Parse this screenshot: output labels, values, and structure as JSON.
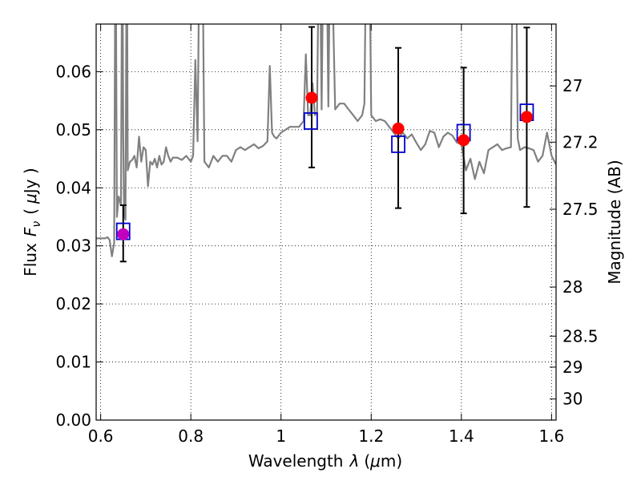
{
  "chart_data": {
    "type": "scatter",
    "xlabel_text": "Wavelength",
    "xlabel_symbol": "λ",
    "xlabel_unit_open": "(",
    "xlabel_unit_mu": "μ",
    "xlabel_unit_rest": "m)",
    "ylabel_text": "Flux",
    "ylabel_symbol": "F",
    "ylabel_subscript": "ν",
    "ylabel_unit_open": "(",
    "ylabel_unit_mu": "μ",
    "ylabel_unit_rest": "Jy )",
    "y2label": "Magnitude (AB)",
    "xlim": [
      0.59,
      1.61
    ],
    "ylim": [
      0.0,
      0.0682
    ],
    "x_ticks": [
      {
        "value": 0.6,
        "label": "0.6"
      },
      {
        "value": 0.8,
        "label": "0.8"
      },
      {
        "value": 1.0,
        "label": "1"
      },
      {
        "value": 1.2,
        "label": "1.2"
      },
      {
        "value": 1.4,
        "label": "1.4"
      },
      {
        "value": 1.6,
        "label": "1.6"
      }
    ],
    "y_ticks": [
      {
        "value": 0.0,
        "label": "0.00"
      },
      {
        "value": 0.01,
        "label": "0.01"
      },
      {
        "value": 0.02,
        "label": "0.02"
      },
      {
        "value": 0.03,
        "label": "0.03"
      },
      {
        "value": 0.04,
        "label": "0.04"
      },
      {
        "value": 0.05,
        "label": "0.05"
      },
      {
        "value": 0.06,
        "label": "0.06"
      }
    ],
    "y2_ticks": [
      {
        "value": 27,
        "label": "27"
      },
      {
        "value": 27.2,
        "label": "27.2"
      },
      {
        "value": 27.5,
        "label": "27.5"
      },
      {
        "value": 28,
        "label": "28"
      },
      {
        "value": 28.5,
        "label": "28.5"
      },
      {
        "value": 29,
        "label": "29"
      },
      {
        "value": 30,
        "label": "30"
      }
    ],
    "grid": true,
    "colors": {
      "model": "#808080",
      "observed": "#ff0000",
      "observed_first": "#bf00bf",
      "model_box": "#0000cc",
      "errorbar": "#000000"
    },
    "model_spectrum": {
      "x": [
        0.59,
        0.61,
        0.615,
        0.62,
        0.625,
        0.63,
        0.633,
        0.636,
        0.64,
        0.645,
        0.648,
        0.65,
        0.652,
        0.655,
        0.658,
        0.66,
        0.665,
        0.67,
        0.675,
        0.68,
        0.685,
        0.69,
        0.695,
        0.7,
        0.705,
        0.71,
        0.715,
        0.72,
        0.725,
        0.73,
        0.735,
        0.74,
        0.745,
        0.75,
        0.755,
        0.76,
        0.77,
        0.78,
        0.79,
        0.8,
        0.805,
        0.81,
        0.815,
        0.82,
        0.825,
        0.83,
        0.84,
        0.85,
        0.86,
        0.87,
        0.88,
        0.89,
        0.9,
        0.91,
        0.92,
        0.93,
        0.94,
        0.95,
        0.96,
        0.97,
        0.975,
        0.98,
        0.985,
        0.99,
        1.0,
        1.02,
        1.04,
        1.05,
        1.055,
        1.06,
        1.065,
        1.07,
        1.075,
        1.08,
        1.085,
        1.09,
        1.095,
        1.1,
        1.105,
        1.11,
        1.12,
        1.13,
        1.14,
        1.15,
        1.16,
        1.17,
        1.18,
        1.185,
        1.19,
        1.195,
        1.2,
        1.21,
        1.22,
        1.23,
        1.24,
        1.25,
        1.26,
        1.27,
        1.28,
        1.29,
        1.3,
        1.31,
        1.32,
        1.33,
        1.34,
        1.35,
        1.36,
        1.37,
        1.38,
        1.39,
        1.4,
        1.41,
        1.42,
        1.43,
        1.44,
        1.45,
        1.46,
        1.47,
        1.48,
        1.49,
        1.5,
        1.51,
        1.515,
        1.52,
        1.525,
        1.53,
        1.54,
        1.55,
        1.56,
        1.57,
        1.58,
        1.59,
        1.6,
        1.61
      ],
      "y": [
        0.0313,
        0.0313,
        0.0315,
        0.031,
        0.0282,
        0.0305,
        0.09,
        0.035,
        0.0385,
        0.037,
        0.09,
        0.049,
        0.0355,
        0.0345,
        0.09,
        0.043,
        0.0445,
        0.0448,
        0.0455,
        0.0435,
        0.0488,
        0.0445,
        0.047,
        0.0465,
        0.0403,
        0.0445,
        0.044,
        0.045,
        0.0435,
        0.0455,
        0.044,
        0.0445,
        0.047,
        0.0455,
        0.0445,
        0.0452,
        0.0452,
        0.0448,
        0.0455,
        0.0445,
        0.0455,
        0.062,
        0.048,
        0.09,
        0.09,
        0.0445,
        0.0435,
        0.0455,
        0.0445,
        0.0455,
        0.0455,
        0.0445,
        0.0465,
        0.047,
        0.0465,
        0.047,
        0.0475,
        0.0468,
        0.0472,
        0.048,
        0.061,
        0.0495,
        0.0488,
        0.0485,
        0.0495,
        0.0505,
        0.0505,
        0.0515,
        0.063,
        0.0525,
        0.0525,
        0.058,
        0.0525,
        0.053,
        0.09,
        0.0535,
        0.09,
        0.09,
        0.054,
        0.09,
        0.0535,
        0.0545,
        0.0545,
        0.0535,
        0.0525,
        0.0515,
        0.0525,
        0.0545,
        0.09,
        0.09,
        0.0525,
        0.0515,
        0.0518,
        0.0515,
        0.0505,
        0.0495,
        0.0485,
        0.0495,
        0.0485,
        0.0492,
        0.0478,
        0.0465,
        0.0475,
        0.0498,
        0.0495,
        0.047,
        0.0488,
        0.0495,
        0.049,
        0.0478,
        0.0475,
        0.043,
        0.045,
        0.0415,
        0.0445,
        0.0425,
        0.0465,
        0.047,
        0.0475,
        0.0465,
        0.0468,
        0.047,
        0.09,
        0.09,
        0.0485,
        0.0465,
        0.047,
        0.0468,
        0.0465,
        0.0445,
        0.0455,
        0.0495,
        0.0455,
        0.044
      ]
    },
    "model_photometry": {
      "x": [
        0.65,
        1.066,
        1.26,
        1.405,
        1.545
      ],
      "y": [
        0.0325,
        0.0515,
        0.0475,
        0.0495,
        0.053
      ]
    },
    "observed": {
      "x": [
        0.65,
        1.068,
        1.26,
        1.405,
        1.545
      ],
      "y": [
        0.032,
        0.0555,
        0.0502,
        0.0482,
        0.0522
      ],
      "yerr_low": [
        0.0273,
        0.0435,
        0.0365,
        0.0356,
        0.0367
      ],
      "yerr_high": [
        0.037,
        0.0677,
        0.0641,
        0.0607,
        0.0676
      ]
    }
  }
}
